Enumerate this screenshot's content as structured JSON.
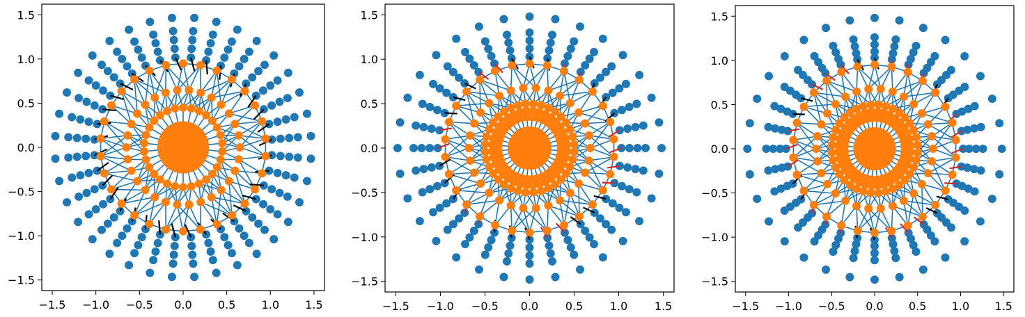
{
  "colors": {
    "outer": "#1f77b4",
    "inner": "#ff7f0e",
    "link": "#1f77b4",
    "attach": "#000000",
    "attach_alt": "#d62728"
  },
  "chart_data": [
    {
      "type": "scatter",
      "title": "",
      "xlabel": "",
      "ylabel": "",
      "xlim": [
        -1.62,
        1.62
      ],
      "ylim": [
        -1.62,
        1.62
      ],
      "xticks": [
        -1.5,
        -1.0,
        -0.5,
        0.0,
        0.5,
        1.0,
        1.5
      ],
      "xtick_labels": [
        "−1.5",
        "−1.0",
        "−0.5",
        "0.0",
        "0.5",
        "1.0",
        "1.5"
      ],
      "yticks": [
        -1.5,
        -1.0,
        -0.5,
        0.0,
        0.5,
        1.0,
        1.5
      ],
      "ytick_labels": [
        "−1.5",
        "−1.0",
        "−0.5",
        "0.0",
        "0.5",
        "1.0",
        "1.5"
      ],
      "grid": false,
      "series": [
        {
          "role": "inner",
          "radii": [
            0.05,
            0.1,
            0.15,
            0.2,
            0.25
          ],
          "count": 30,
          "angle_offset_deg": 0
        },
        {
          "role": "inner",
          "radii": [
            0.45
          ],
          "count": 30,
          "angle_offset_deg": 6
        },
        {
          "role": "inner",
          "radii": [
            0.65
          ],
          "count": 30,
          "angle_offset_deg": 0
        },
        {
          "role": "inner",
          "radii": [
            0.95
          ],
          "count": 30,
          "angle_offset_deg": 6
        },
        {
          "role": "outer",
          "spokes": 36,
          "angle_offset_deg": 5,
          "radii": [
            1.02,
            1.12,
            1.22,
            1.32
          ],
          "tip_radius": 1.47
        }
      ],
      "tether_length": 0.16,
      "red_fraction": 0.0
    },
    {
      "type": "scatter",
      "title": "",
      "xlabel": "",
      "ylabel": "",
      "xlim": [
        -1.62,
        1.62
      ],
      "ylim": [
        -1.62,
        1.62
      ],
      "xticks": [
        -1.5,
        -1.0,
        -0.5,
        0.0,
        0.5,
        1.0,
        1.5
      ],
      "xtick_labels": [
        "−1.5",
        "−1.0",
        "−0.5",
        "0.0",
        "0.5",
        "1.0",
        "1.5"
      ],
      "yticks": [
        -1.5,
        -1.0,
        -0.5,
        0.0,
        0.5,
        1.0,
        1.5
      ],
      "ytick_labels": [
        "−1.5",
        "−1.0",
        "−0.5",
        "0.0",
        "0.5",
        "1.0",
        "1.5"
      ],
      "grid": false,
      "series": [
        {
          "role": "inner",
          "radii": [
            0.05,
            0.1,
            0.15,
            0.2
          ],
          "count": 30,
          "angle_offset_deg": 0
        },
        {
          "role": "inner",
          "radii": [
            0.35,
            0.42,
            0.5
          ],
          "count": 36,
          "angle_offset_deg": 5
        },
        {
          "role": "inner",
          "radii": [
            0.68
          ],
          "count": 30,
          "angle_offset_deg": 0
        },
        {
          "role": "inner",
          "radii": [
            0.95
          ],
          "count": 30,
          "angle_offset_deg": 6
        },
        {
          "role": "outer",
          "spokes": 32,
          "angle_offset_deg": 0,
          "radii": [
            1.03,
            1.12,
            1.21,
            1.3
          ],
          "tip_radius": 1.48
        }
      ],
      "tether_length": 0.14,
      "red_fraction": 0.35
    },
    {
      "type": "scatter",
      "title": "",
      "xlabel": "",
      "ylabel": "",
      "xlim": [
        -1.62,
        1.62
      ],
      "ylim": [
        -1.62,
        1.62
      ],
      "xticks": [
        -1.5,
        -1.0,
        -0.5,
        0.0,
        0.5,
        1.0,
        1.5
      ],
      "xtick_labels": [
        "−1.5",
        "−1.0",
        "−0.5",
        "0.0",
        "0.5",
        "1.0",
        "1.5"
      ],
      "yticks": [
        -1.5,
        -1.0,
        -0.5,
        0.0,
        0.5,
        1.0,
        1.5
      ],
      "ytick_labels": [
        "−1.5",
        "−1.0",
        "−0.5",
        "0.0",
        "0.5",
        "1.0",
        "1.5"
      ],
      "grid": false,
      "series": [
        {
          "role": "inner",
          "radii": [
            0.05,
            0.1,
            0.15,
            0.2
          ],
          "count": 30,
          "angle_offset_deg": 0
        },
        {
          "role": "inner",
          "radii": [
            0.35,
            0.42,
            0.5
          ],
          "count": 36,
          "angle_offset_deg": 5
        },
        {
          "role": "inner",
          "radii": [
            0.68
          ],
          "count": 30,
          "angle_offset_deg": 0
        },
        {
          "role": "inner",
          "radii": [
            0.95
          ],
          "count": 30,
          "angle_offset_deg": 6
        },
        {
          "role": "outer",
          "spokes": 32,
          "angle_offset_deg": 0,
          "radii": [
            1.03,
            1.1,
            1.18,
            1.26
          ],
          "tip_radius": 1.48
        }
      ],
      "tether_length": 0.14,
      "red_fraction": 0.55
    }
  ]
}
